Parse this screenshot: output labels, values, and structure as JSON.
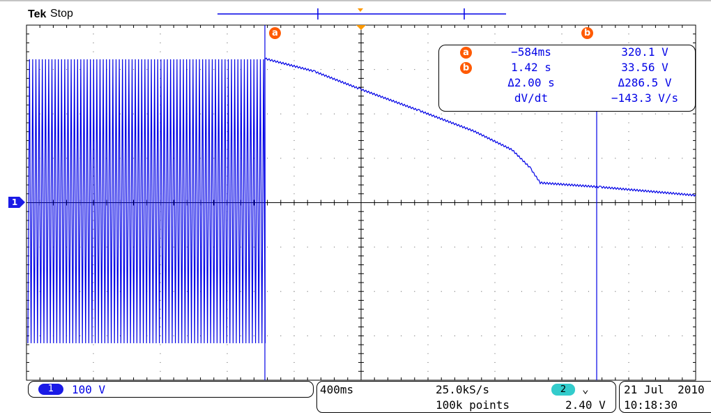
{
  "header": {
    "brand": "Tek",
    "acquisition_state": "Stop"
  },
  "cursors": {
    "a_label": "a",
    "b_label": "b"
  },
  "ground_marker": "1",
  "readout": {
    "a_time": "−584ms",
    "a_value": "320.1 V",
    "b_time": "1.42 s",
    "b_value": "33.56 V",
    "delta_time": "Δ2.00 s",
    "delta_value": "Δ286.5 V",
    "rate_label": "dV/dt",
    "rate_value": "−143.3 V/s"
  },
  "channel": {
    "number": "1",
    "scale": "100 V",
    "color": "#0000e6"
  },
  "timebase": {
    "per_div": "400ms",
    "sample_rate": "25.0kS/s",
    "record_length": "100k points"
  },
  "trigger": {
    "source": "2",
    "slope_icon": "falling-edge-icon",
    "slope_glyph": "⌄",
    "level": "2.40 V",
    "color": "#33cccc"
  },
  "datetime": {
    "date": "21 Jul  2010",
    "time": "10:18:30"
  },
  "colors": {
    "trace": "#0000e6",
    "cursor_badge": "#ff5a00",
    "trigger_marker": "#ff9900"
  }
}
